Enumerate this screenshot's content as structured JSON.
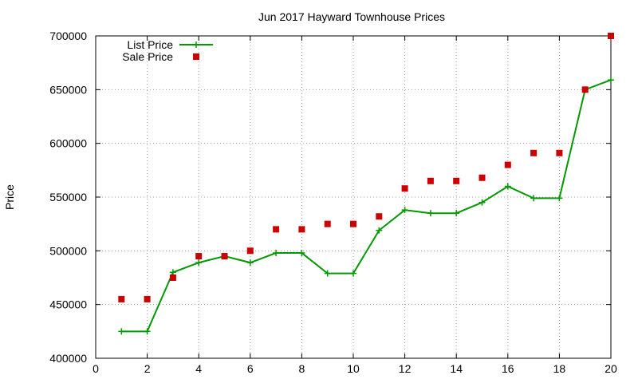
{
  "chart_data": {
    "type": "line",
    "title": "Jun 2017 Hayward Townhouse Prices",
    "xlabel": "",
    "ylabel": "Price",
    "xlim": [
      0,
      20
    ],
    "ylim": [
      400000,
      700000
    ],
    "xticks": [
      0,
      2,
      4,
      6,
      8,
      10,
      12,
      14,
      16,
      18,
      20
    ],
    "yticks": [
      400000,
      450000,
      500000,
      550000,
      600000,
      650000,
      700000
    ],
    "grid": true,
    "legend_position": "top-left",
    "series": [
      {
        "name": "List Price",
        "style": "line+cross",
        "color": "#009900",
        "x": [
          1,
          2,
          3,
          4,
          5,
          6,
          7,
          8,
          9,
          10,
          11,
          12,
          13,
          14,
          15,
          16,
          17,
          18,
          19,
          20
        ],
        "y": [
          425000,
          425000,
          480000,
          489000,
          495000,
          489000,
          498000,
          498000,
          479000,
          479000,
          519000,
          538000,
          535000,
          535000,
          545000,
          560000,
          549000,
          549000,
          650000,
          659000
        ]
      },
      {
        "name": "Sale Price",
        "style": "square",
        "color": "#cc0000",
        "x": [
          1,
          2,
          3,
          4,
          5,
          6,
          7,
          8,
          9,
          10,
          11,
          12,
          13,
          14,
          15,
          16,
          17,
          18,
          19,
          20
        ],
        "y": [
          455000,
          455000,
          475000,
          495000,
          495000,
          500000,
          520000,
          520000,
          525000,
          525000,
          532000,
          558000,
          565000,
          565000,
          568000,
          580000,
          591000,
          591000,
          650000,
          700000
        ]
      }
    ]
  }
}
